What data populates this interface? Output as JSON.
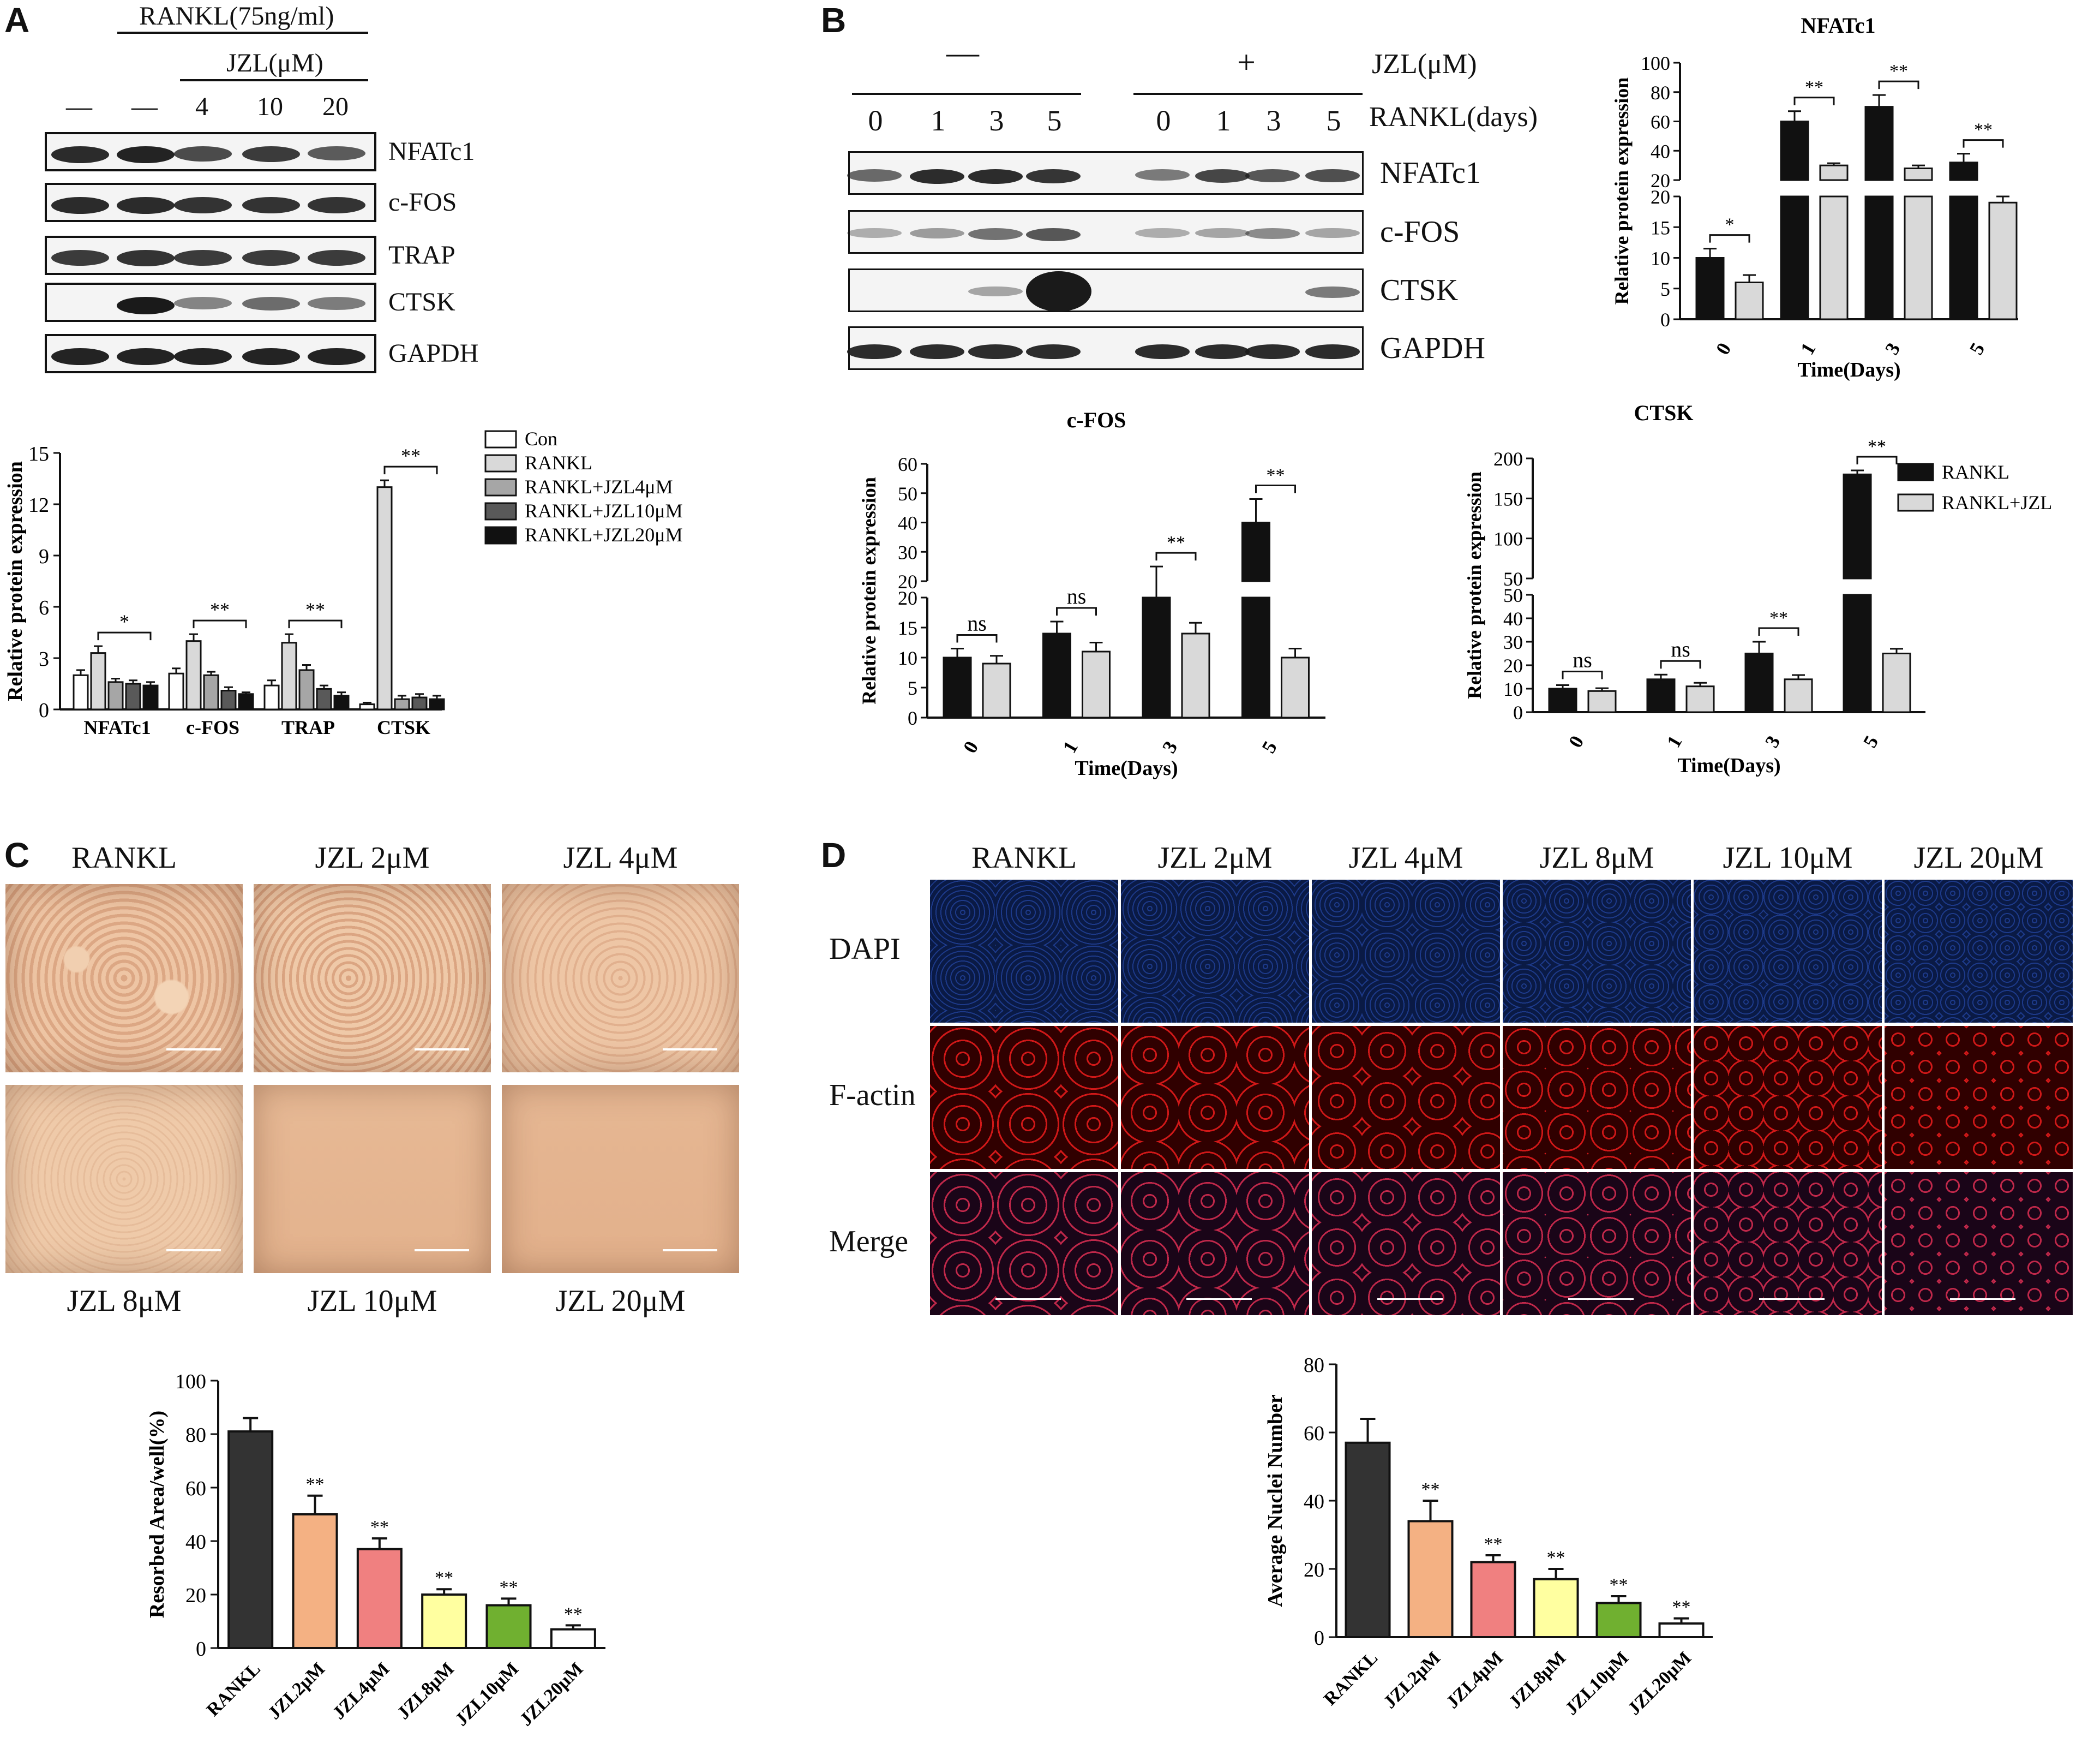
{
  "panel_labels": {
    "a": "A",
    "b": "B",
    "c": "C",
    "d": "D"
  },
  "panel_a": {
    "rankl_header": "RANKL(75ng/ml)",
    "jzl_header": "JZL(μM)",
    "lane_labels": [
      "—",
      "—",
      "4",
      "10",
      "20"
    ],
    "blot_labels": [
      "NFATc1",
      "c-FOS",
      "TRAP",
      "CTSK",
      "GAPDH"
    ]
  },
  "panel_b": {
    "group_labels": [
      "—",
      "+"
    ],
    "jzl_label": "JZL(μM)",
    "days_label": "RANKL(days)",
    "day_values": [
      "0",
      "1",
      "3",
      "5",
      "0",
      "1",
      "3",
      "5"
    ],
    "blot_labels": [
      "NFATc1",
      "c-FOS",
      "CTSK",
      "GAPDH"
    ]
  },
  "panel_c": {
    "image_labels": [
      "RANKL",
      "JZL 2μM",
      "JZL 4μM",
      "JZL 8μM",
      "JZL 10μM",
      "JZL 20μM"
    ]
  },
  "panel_d": {
    "column_labels": [
      "RANKL",
      "JZL 2μM",
      "JZL 4μM",
      "JZL 8μM",
      "JZL 10μM",
      "JZL 20μM"
    ],
    "row_labels": [
      "DAPI",
      "F-actin",
      "Merge"
    ]
  },
  "chart_data": [
    {
      "id": "a-quant",
      "type": "bar",
      "title": "",
      "ylabel": "Relative protein expression",
      "xlabel": "",
      "ylim": [
        0,
        15
      ],
      "yticks": [
        "0",
        "3",
        "6",
        "9",
        "12",
        "15"
      ],
      "categories": [
        "NFATc1",
        "c-FOS",
        "TRAP",
        "CTSK"
      ],
      "series": [
        {
          "name": "Con",
          "values": [
            2.0,
            2.1,
            1.4,
            0.3
          ],
          "errors": [
            0.3,
            0.3,
            0.3,
            0.1
          ],
          "color": "#ffffff"
        },
        {
          "name": "RANKL",
          "values": [
            3.3,
            4.0,
            3.9,
            13.0
          ],
          "errors": [
            0.4,
            0.4,
            0.5,
            0.4
          ],
          "color": "#d9d9d9"
        },
        {
          "name": "RANKL+JZL4μM",
          "values": [
            1.6,
            2.0,
            2.3,
            0.6
          ],
          "errors": [
            0.2,
            0.2,
            0.3,
            0.2
          ],
          "color": "#a6a6a6"
        },
        {
          "name": "RANKL+JZL10μM",
          "values": [
            1.5,
            1.1,
            1.2,
            0.7
          ],
          "errors": [
            0.2,
            0.2,
            0.2,
            0.2
          ],
          "color": "#595959"
        },
        {
          "name": "RANKL+JZL20μM",
          "values": [
            1.4,
            0.9,
            0.8,
            0.6
          ],
          "errors": [
            0.2,
            0.1,
            0.2,
            0.2
          ],
          "color": "#111111"
        }
      ],
      "significance": [
        "*",
        "**",
        "**",
        "**"
      ]
    },
    {
      "id": "b-nfatc1",
      "type": "bar",
      "title": "NFATc1",
      "ylabel": "Relative protein expression",
      "xlabel": "Time(Days)",
      "axis_break": [
        20,
        20
      ],
      "yticks_lower": [
        "0",
        "5",
        "10",
        "15",
        "20"
      ],
      "yticks_upper": [
        "20",
        "40",
        "60",
        "80",
        "100"
      ],
      "categories": [
        "0",
        "1",
        "3",
        "5"
      ],
      "series": [
        {
          "name": "RANKL",
          "values": [
            10,
            60,
            70,
            32
          ],
          "errors": [
            1.5,
            7,
            8,
            6
          ],
          "color": "#111111"
        },
        {
          "name": "RANKL+JZL",
          "values": [
            6,
            30,
            28,
            19
          ],
          "errors": [
            1.2,
            1.5,
            2,
            1
          ],
          "color": "#d9d9d9"
        }
      ],
      "significance": [
        "*",
        "**",
        "**",
        "**"
      ]
    },
    {
      "id": "b-cfos",
      "type": "bar",
      "title": "c-FOS",
      "ylabel": "Relative protein expression",
      "xlabel": "Time(Days)",
      "yticks_lower": [
        "0",
        "5",
        "10",
        "15",
        "20"
      ],
      "yticks_upper": [
        "20",
        "30",
        "40",
        "50",
        "60"
      ],
      "categories": [
        "0",
        "1",
        "3",
        "5"
      ],
      "series": [
        {
          "name": "RANKL",
          "values": [
            10,
            14,
            20,
            40
          ],
          "errors": [
            1.5,
            2,
            5,
            8
          ],
          "color": "#111111"
        },
        {
          "name": "RANKL+JZL",
          "values": [
            9,
            11,
            14,
            10
          ],
          "errors": [
            1.3,
            1.5,
            1.8,
            1.5
          ],
          "color": "#d9d9d9"
        }
      ],
      "significance": [
        "ns",
        "ns",
        "**",
        "**"
      ]
    },
    {
      "id": "b-ctsk",
      "type": "bar",
      "title": "CTSK",
      "ylabel": "Relative protein expression",
      "xlabel": "Time(Days)",
      "yticks_lower": [
        "0",
        "10",
        "20",
        "30",
        "40",
        "50"
      ],
      "yticks_upper": [
        "50",
        "100",
        "150",
        "200"
      ],
      "categories": [
        "0",
        "1",
        "3",
        "5"
      ],
      "series": [
        {
          "name": "RANKL",
          "values": [
            10,
            14,
            25,
            180
          ],
          "errors": [
            1.5,
            2,
            5,
            5
          ],
          "color": "#111111"
        },
        {
          "name": "RANKL+JZL",
          "values": [
            9,
            11,
            14,
            25
          ],
          "errors": [
            1.2,
            1.5,
            1.8,
            2
          ],
          "color": "#d9d9d9"
        }
      ],
      "legend": [
        "RANKL",
        "RANKL+JZL"
      ],
      "significance": [
        "ns",
        "ns",
        "**",
        "**"
      ]
    },
    {
      "id": "c-quant",
      "type": "bar",
      "title": "",
      "ylabel": "Resorbed Area/well(%)",
      "ylim": [
        0,
        100
      ],
      "yticks": [
        "0",
        "20",
        "40",
        "60",
        "80",
        "100"
      ],
      "categories": [
        "RANKL",
        "JZL2μM",
        "JZL4μM",
        "JZL8μM",
        "JZL10μM",
        "JZL20μM"
      ],
      "values": [
        81,
        50,
        37,
        20,
        16,
        7
      ],
      "errors": [
        5,
        7,
        4,
        2,
        2.5,
        1.5
      ],
      "colors": [
        "#333333",
        "#f4b183",
        "#f08080",
        "#ffffa0",
        "#70b030",
        "#ffffff"
      ],
      "significance": [
        "",
        "**",
        "**",
        "**",
        "**",
        "**"
      ]
    },
    {
      "id": "d-quant",
      "type": "bar",
      "title": "",
      "ylabel": "Average Nuclei Number",
      "ylim": [
        0,
        80
      ],
      "yticks": [
        "0",
        "20",
        "40",
        "60",
        "80"
      ],
      "categories": [
        "RANKL",
        "JZL2μM",
        "JZL4μM",
        "JZL8μM",
        "JZL10μM",
        "JZL20μM"
      ],
      "values": [
        57,
        34,
        22,
        17,
        10,
        4
      ],
      "errors": [
        7,
        6,
        2,
        3,
        2,
        1.5
      ],
      "colors": [
        "#333333",
        "#f4b183",
        "#f08080",
        "#ffffa0",
        "#70b030",
        "#ffffff"
      ],
      "significance": [
        "",
        "**",
        "**",
        "**",
        "**",
        "**"
      ]
    }
  ],
  "colors": {
    "bone_slice": "#e8b896",
    "dapi": "#0d1f4f",
    "factin": "#6a0a0a",
    "merge": "#3a0d2a"
  }
}
